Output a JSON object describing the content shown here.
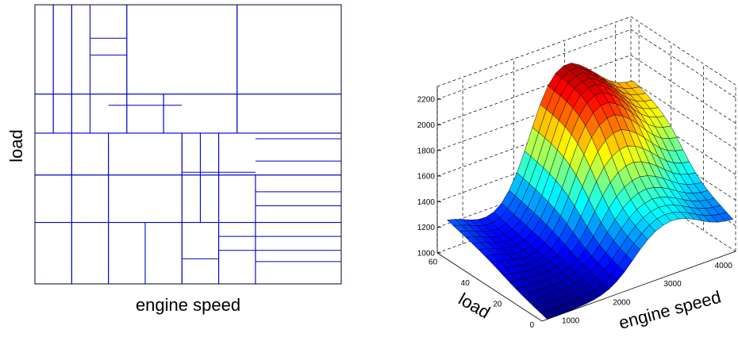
{
  "chart_data": [
    {
      "type": "partition",
      "xlabel": "engine speed",
      "ylabel": "load",
      "line_color": "#0000cc",
      "grid": false,
      "x_range": [
        0,
        100
      ],
      "y_range": [
        0,
        100
      ],
      "cells": [
        [
          0,
          6,
          0,
          32
        ],
        [
          6,
          12,
          0,
          32
        ],
        [
          12,
          18,
          0,
          32
        ],
        [
          18,
          30,
          0,
          32
        ],
        [
          30,
          66,
          0,
          32
        ],
        [
          66,
          100,
          0,
          32
        ],
        [
          0,
          6,
          32,
          46
        ],
        [
          6,
          12,
          32,
          46
        ],
        [
          12,
          18,
          32,
          46
        ],
        [
          18,
          30,
          32,
          46
        ],
        [
          30,
          42,
          32,
          46
        ],
        [
          42,
          66,
          32,
          46
        ],
        [
          66,
          100,
          32,
          46
        ],
        [
          0,
          12,
          46,
          61
        ],
        [
          12,
          24,
          46,
          61
        ],
        [
          24,
          48,
          46,
          61
        ],
        [
          48,
          54,
          46,
          61
        ],
        [
          54,
          60,
          46,
          61
        ],
        [
          60,
          100,
          46,
          61
        ],
        [
          0,
          12,
          61,
          78
        ],
        [
          12,
          24,
          61,
          78
        ],
        [
          24,
          48,
          61,
          78
        ],
        [
          48,
          54,
          61,
          78
        ],
        [
          54,
          60,
          61,
          78
        ],
        [
          60,
          72,
          61,
          78
        ],
        [
          72,
          100,
          61,
          78
        ],
        [
          0,
          12,
          78,
          100
        ],
        [
          12,
          24,
          78,
          100
        ],
        [
          24,
          36,
          78,
          100
        ],
        [
          36,
          48,
          78,
          100
        ],
        [
          48,
          60,
          78,
          100
        ],
        [
          60,
          72,
          78,
          100
        ],
        [
          72,
          100,
          78,
          100
        ]
      ],
      "extra_hlines": [
        [
          18,
          30,
          12
        ],
        [
          18,
          30,
          18
        ],
        [
          24,
          48,
          36
        ],
        [
          72,
          100,
          48
        ],
        [
          72,
          100,
          56
        ],
        [
          48,
          60,
          60
        ],
        [
          60,
          72,
          60
        ],
        [
          72,
          100,
          67
        ],
        [
          72,
          100,
          72
        ],
        [
          60,
          100,
          83
        ],
        [
          60,
          100,
          88
        ],
        [
          48,
          60,
          91
        ],
        [
          72,
          100,
          92
        ]
      ]
    },
    {
      "type": "surface",
      "xlabel": "engine speed",
      "ylabel": "load",
      "x_ticks": [
        "1000",
        "2000",
        "3000",
        "4000"
      ],
      "y_ticks": [
        "0",
        "20",
        "40",
        "60"
      ],
      "z_ticks": [
        "1000",
        "1200",
        "1400",
        "1600",
        "1800",
        "2000",
        "2200"
      ],
      "x_range": [
        500,
        4300
      ],
      "y_range": [
        0,
        65
      ],
      "z_range": [
        1000,
        2300
      ],
      "colormap": "jet"
    }
  ]
}
